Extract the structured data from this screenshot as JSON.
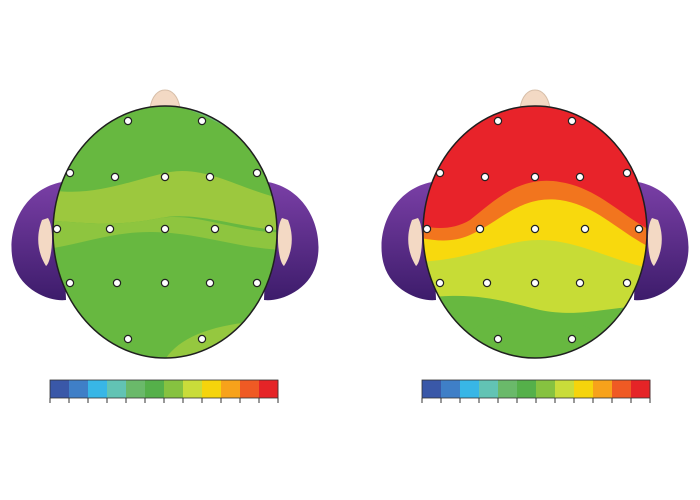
{
  "figure": {
    "panels": [
      {
        "id": "left",
        "state": "uniform activity",
        "scalp_levels": [
          "green",
          "yellow-green",
          "green",
          "yellow-green",
          "green",
          "light-green",
          "yellow-green"
        ],
        "colorbar_levels": 12
      },
      {
        "id": "right",
        "state": "high frontal activity",
        "scalp_levels": [
          "red",
          "orange",
          "yellow",
          "yellow-green",
          "green"
        ],
        "colorbar_levels": 12
      }
    ],
    "colorbar_colors": [
      "#3a58a8",
      "#3f7fc7",
      "#38b6e6",
      "#62c3b4",
      "#6ab96a",
      "#55b04a",
      "#86c240",
      "#c9dc3a",
      "#f5d40c",
      "#f7a21b",
      "#ef5a24",
      "#e52427"
    ],
    "colors": {
      "red": "#e8232a",
      "orange": "#f2751e",
      "yellow": "#f8d90d",
      "yellow_green": "#c7dc36",
      "light_green": "#9ccb3b",
      "green": "#67b840",
      "dark_green": "#5ab142",
      "ear_purple": "#5b2a86",
      "nose_skin": "#f3d9c4"
    },
    "electrode_count": 19
  }
}
